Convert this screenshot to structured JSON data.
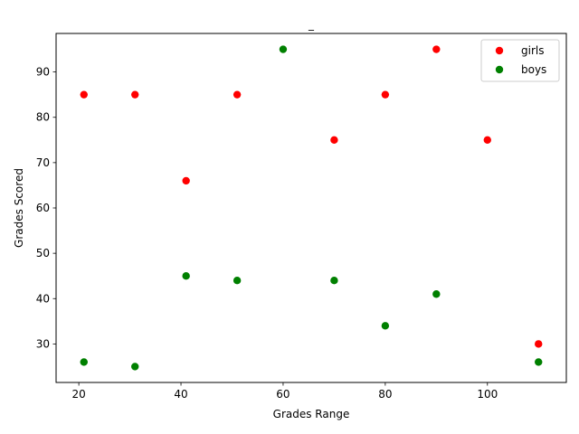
{
  "chart_data": {
    "type": "scatter",
    "title": "_",
    "xlabel": "Grades Range",
    "ylabel": "Grades Scored",
    "xlim": [
      15.55,
      115.45
    ],
    "ylim": [
      21.5,
      98.5
    ],
    "xticks": [
      20,
      40,
      60,
      80,
      100
    ],
    "yticks": [
      30,
      40,
      50,
      60,
      70,
      80,
      90
    ],
    "grid": false,
    "legend_position": "top-right",
    "series": [
      {
        "name": "girls",
        "color": "#ff0000",
        "x": [
          21,
          31,
          41,
          51,
          70,
          80,
          90,
          100,
          110
        ],
        "y": [
          85,
          85,
          66,
          85,
          75,
          85,
          95,
          75,
          30
        ]
      },
      {
        "name": "boys",
        "color": "#008000",
        "x": [
          21,
          31,
          41,
          51,
          60,
          70,
          80,
          90,
          110
        ],
        "y": [
          26,
          25,
          45,
          44,
          95,
          44,
          34,
          41,
          26
        ]
      }
    ]
  }
}
